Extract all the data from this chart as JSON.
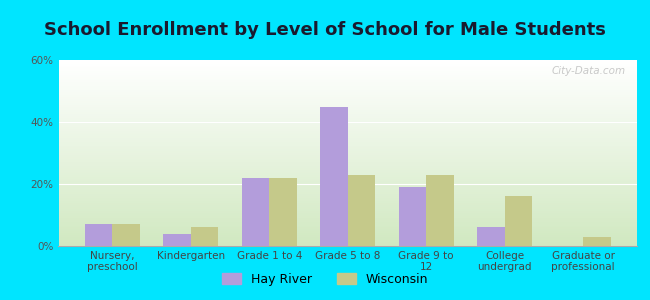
{
  "title": "School Enrollment by Level of School for Male Students",
  "categories": [
    "Nursery,\npreschool",
    "Kindergarten",
    "Grade 1 to 4",
    "Grade 5 to 8",
    "Grade 9 to\n12",
    "College\nundergrad",
    "Graduate or\nprofessional"
  ],
  "hay_river": [
    7,
    4,
    22,
    45,
    19,
    6,
    0
  ],
  "wisconsin": [
    7,
    6,
    22,
    23,
    23,
    16,
    3
  ],
  "hay_river_color": "#b39ddb",
  "wisconsin_color": "#c5c98a",
  "bar_width": 0.35,
  "ylim": [
    0,
    60
  ],
  "yticks": [
    0,
    20,
    40,
    60
  ],
  "ytick_labels": [
    "0%",
    "20%",
    "40%",
    "60%"
  ],
  "background_color": "#00e5ff",
  "grad_top": "#ffffff",
  "grad_bottom": "#d0e8c0",
  "title_fontsize": 13,
  "tick_fontsize": 7.5,
  "legend_labels": [
    "Hay River",
    "Wisconsin"
  ],
  "watermark": "City-Data.com"
}
